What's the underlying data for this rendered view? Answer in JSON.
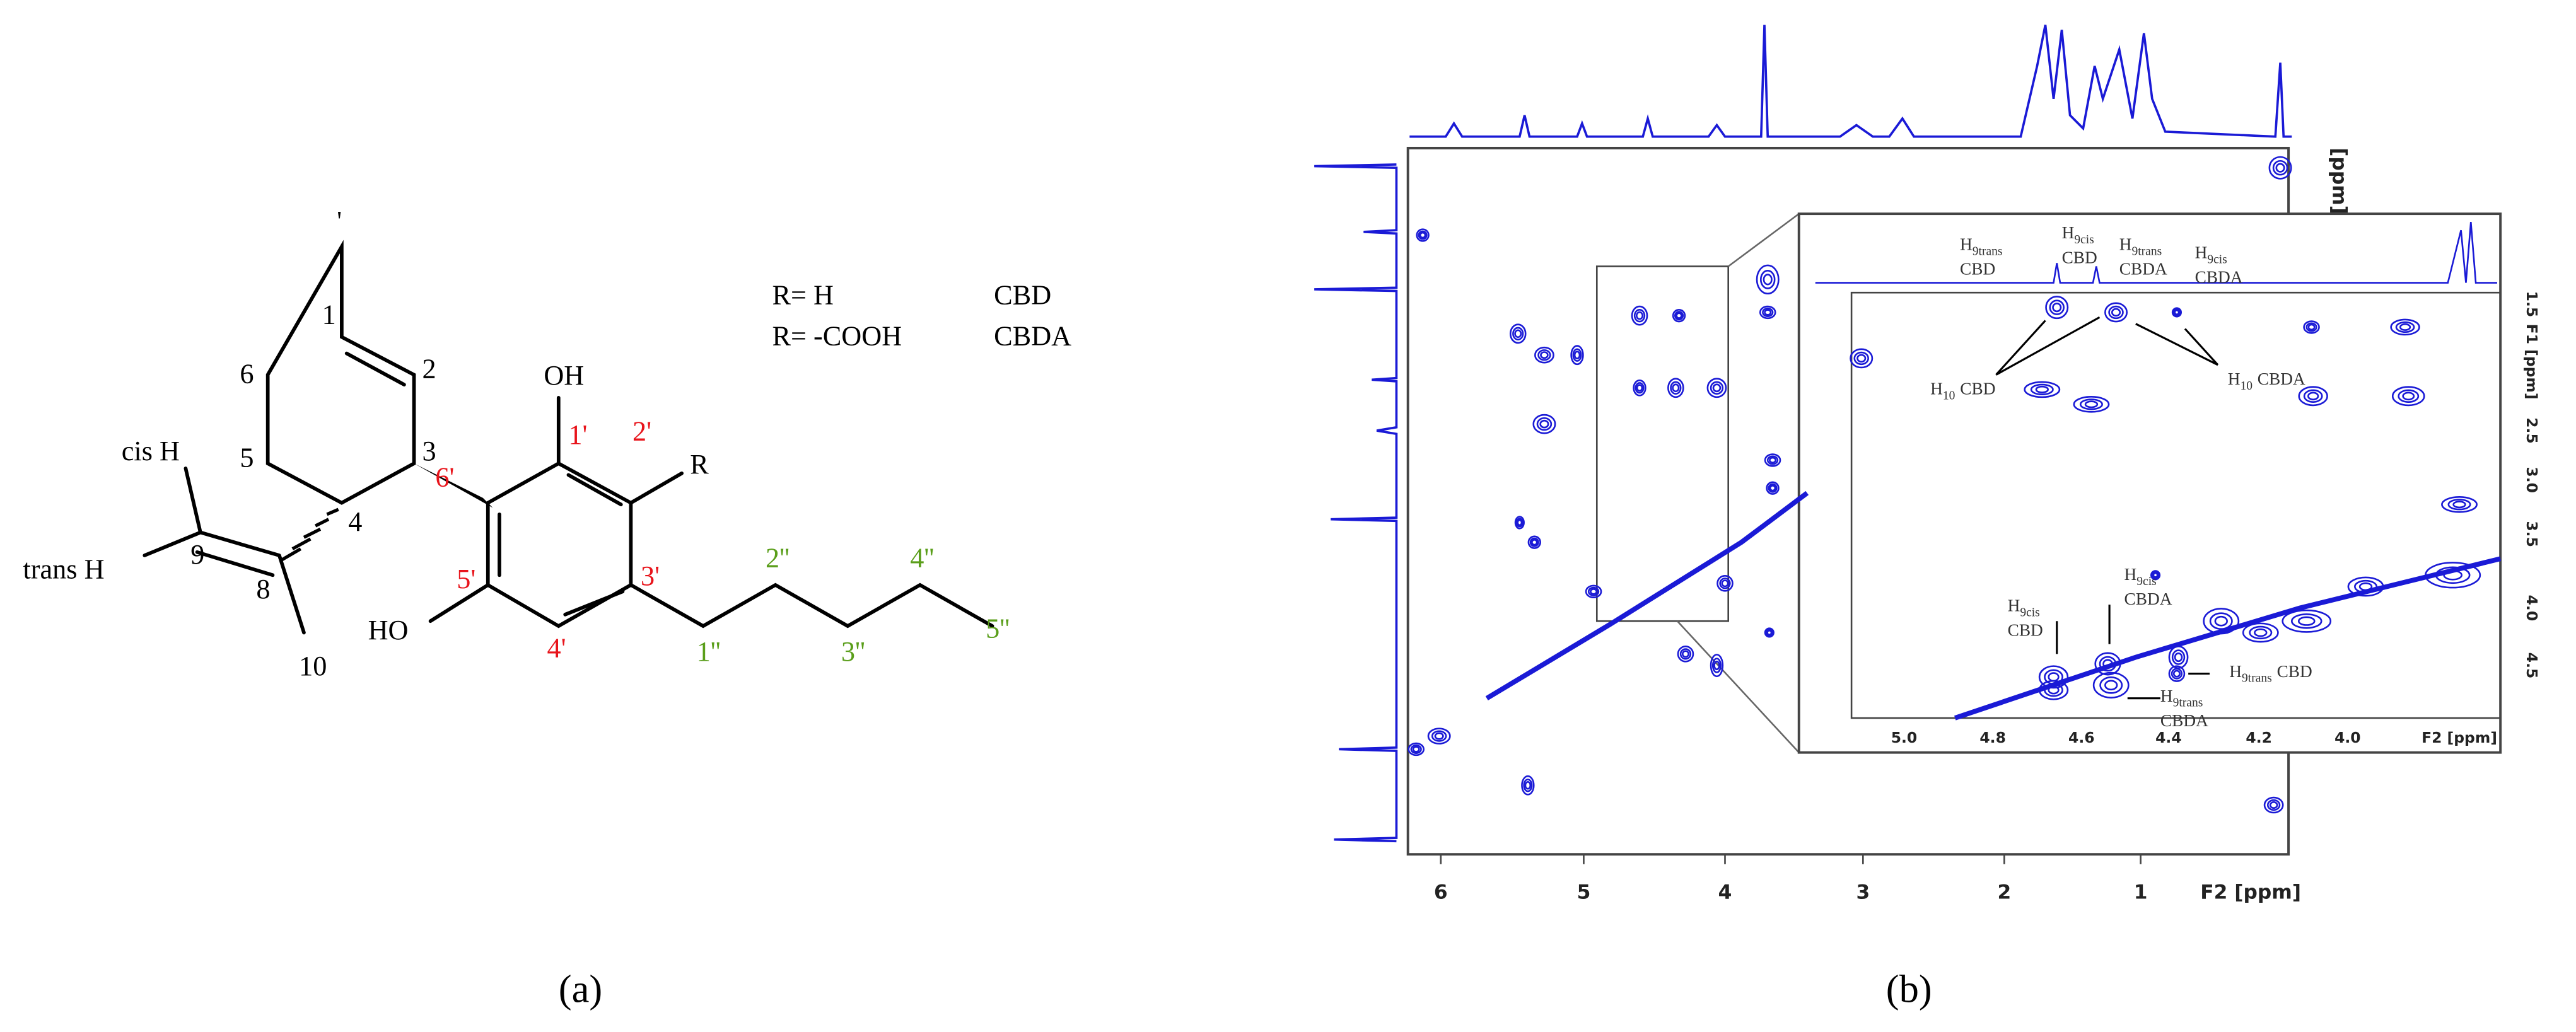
{
  "panel_a": {
    "label": "(a)",
    "top_mark": "'",
    "ring_labels": [
      "1",
      "2",
      "3",
      "4",
      "5",
      "6",
      "8",
      "9",
      "10",
      "cis H",
      "trans H",
      "OH",
      "HO",
      "R"
    ],
    "aromatic_labels": [
      "1'",
      "2'",
      "3'",
      "4'",
      "5'",
      "6'"
    ],
    "aromatic_color": "#e8141b",
    "chain_labels": [
      "1''",
      "2''",
      "3''",
      "4''",
      "5''"
    ],
    "chain_color": "#5a9e1a",
    "legend": [
      [
        "R= H",
        "CBD"
      ],
      [
        "R= -COOH",
        "CBDA"
      ]
    ]
  },
  "panel_b": {
    "label": "(b)",
    "color": "#1a1ad6",
    "main_xticks": [
      "6",
      "5",
      "4",
      "3",
      "2",
      "1"
    ],
    "main_xlabel": "F2 [ppm]",
    "main_ylabel": "[ppm]",
    "inset_xticks": [
      "5.0",
      "4.8",
      "4.6",
      "4.4",
      "4.2",
      "4.0"
    ],
    "inset_xlabel": "F2 [ppm]",
    "inset_yticks": [
      "1.5",
      "2.5",
      "3.0",
      "3.5",
      "4.0",
      "4.5"
    ],
    "inset_ylabel": "F1 [ppm]",
    "annotations": [
      {
        "h": "H",
        "sub": "9trans",
        "name": "CBD"
      },
      {
        "h": "H",
        "sub": "9cis",
        "name": "CBD"
      },
      {
        "h": "H",
        "sub": "9trans",
        "name": "CBDA"
      },
      {
        "h": "H",
        "sub": "9cis",
        "name": "CBDA"
      },
      {
        "h": "H",
        "sub": "10",
        "name": "CBD"
      },
      {
        "h": "H",
        "sub": "10",
        "name": "CBDA"
      },
      {
        "h": "H",
        "sub": "9cis",
        "name": "CBD"
      },
      {
        "h": "H",
        "sub": "9cis",
        "name": "CBDA"
      },
      {
        "h": "H",
        "sub": "9trans",
        "name": "CBD"
      },
      {
        "h": "H",
        "sub": "9trans",
        "name": "CBDA"
      }
    ]
  }
}
